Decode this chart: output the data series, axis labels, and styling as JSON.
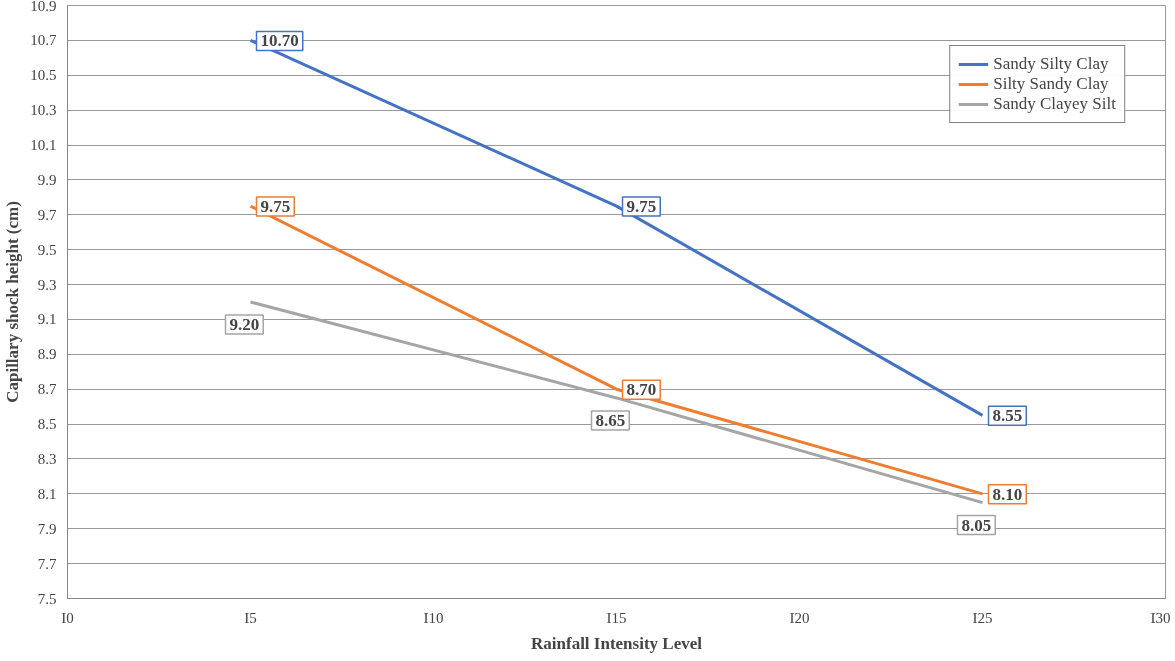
{
  "chart_data": {
    "type": "line",
    "xlabel": "Rainfall Intensity Level",
    "ylabel": "Capillary shock height (cm)",
    "categories": [
      "I0",
      "I5",
      "I10",
      "I15",
      "I20",
      "I25",
      "I30"
    ],
    "series": [
      {
        "name": "Sandy Silty Clay",
        "color": "#4472c4",
        "values": [
          null,
          10.7,
          null,
          9.75,
          null,
          8.55,
          null
        ],
        "value_labels": [
          null,
          "10.70",
          null,
          "9.75",
          null,
          "8.55",
          null
        ]
      },
      {
        "name": "Silty Sandy Clay",
        "color": "#ed7d31",
        "values": [
          null,
          9.75,
          null,
          8.7,
          null,
          8.1,
          null
        ],
        "value_labels": [
          null,
          "9.75",
          null,
          "8.70",
          null,
          "8.10",
          null
        ]
      },
      {
        "name": "Sandy Clayey Silt",
        "color": "#a5a5a5",
        "values": [
          null,
          9.2,
          null,
          8.65,
          null,
          8.05,
          null
        ],
        "value_labels": [
          null,
          "9.20",
          null,
          "8.65",
          null,
          "8.05",
          null
        ]
      }
    ],
    "ylim": [
      7.5,
      10.9
    ],
    "yticks": [
      7.5,
      7.7,
      7.9,
      8.1,
      8.3,
      8.5,
      8.7,
      8.9,
      9.1,
      9.3,
      9.5,
      9.7,
      9.9,
      10.1,
      10.3,
      10.5,
      10.7,
      10.9
    ],
    "grid": "y",
    "legend": "top right",
    "marker": "none",
    "line_style": "solid"
  }
}
